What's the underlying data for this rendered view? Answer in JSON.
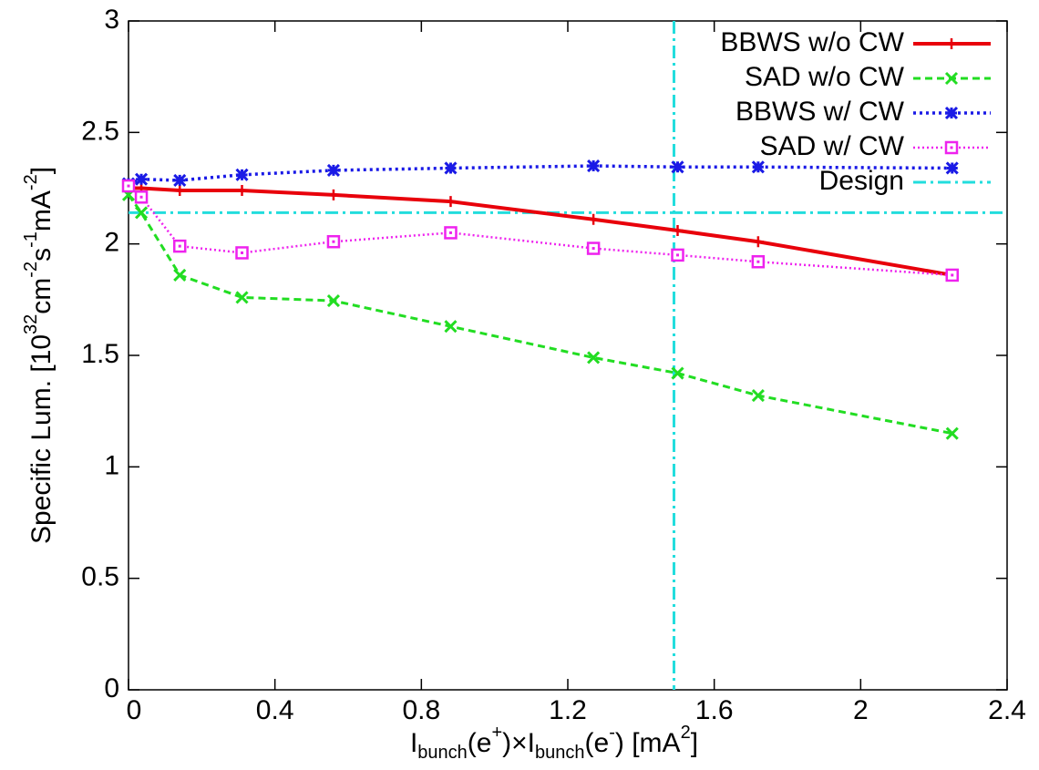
{
  "chart_data": {
    "type": "line",
    "x_label": [
      {
        "text": "I"
      },
      {
        "text": "bunch",
        "script": "sub"
      },
      {
        "text": "(e"
      },
      {
        "text": "+",
        "script": "super"
      },
      {
        "text": ")×I"
      },
      {
        "text": "bunch",
        "script": "sub"
      },
      {
        "text": "(e"
      },
      {
        "text": "-",
        "script": "super"
      },
      {
        "text": ") [mA"
      },
      {
        "text": "2",
        "script": "super"
      },
      {
        "text": "]"
      }
    ],
    "y_label": [
      {
        "text": "Specific Lum. [10"
      },
      {
        "text": "32",
        "script": "super"
      },
      {
        "text": "cm"
      },
      {
        "text": "-2",
        "script": "super"
      },
      {
        "text": "s"
      },
      {
        "text": "-1",
        "script": "super"
      },
      {
        "text": "mA"
      },
      {
        "text": "-2",
        "script": "super"
      },
      {
        "text": "]"
      }
    ],
    "xlim": [
      0,
      2.4
    ],
    "ylim": [
      0,
      3
    ],
    "xticks": [
      0,
      0.4,
      0.8,
      1.2,
      1.6,
      2,
      2.4
    ],
    "yticks": [
      0,
      0.5,
      1,
      1.5,
      2,
      2.5,
      3
    ],
    "legend": "upper right",
    "x": [
      0,
      0.035,
      0.14,
      0.31,
      0.56,
      0.88,
      1.27,
      1.5,
      1.72,
      2.25
    ],
    "series": [
      {
        "name": "BBWS w/o CW",
        "color": "#e8000b",
        "line": "solid",
        "marker": "plus",
        "values": [
          2.25,
          2.25,
          2.24,
          2.24,
          2.22,
          2.19,
          2.11,
          2.06,
          2.01,
          1.86
        ]
      },
      {
        "name": "SAD w/o CW",
        "color": "#22dd22",
        "line": "dashed",
        "marker": "cross",
        "values": [
          2.22,
          2.14,
          1.86,
          1.76,
          1.745,
          1.63,
          1.49,
          1.42,
          1.32,
          1.15
        ]
      },
      {
        "name": "BBWS w/ CW",
        "color": "#1a1ae6",
        "line": "dotted",
        "marker": "star",
        "values": [
          2.27,
          2.29,
          2.285,
          2.31,
          2.33,
          2.34,
          2.35,
          2.345,
          2.345,
          2.34
        ]
      },
      {
        "name": "SAD w/ CW",
        "color": "#ee22ee",
        "line": "finedotted",
        "marker": "square",
        "values": [
          2.26,
          2.21,
          1.99,
          1.96,
          2.01,
          2.05,
          1.98,
          1.95,
          1.92,
          1.86
        ]
      }
    ],
    "design": {
      "name": "Design",
      "color": "#22dddd",
      "x": 1.49,
      "y": 2.14
    }
  }
}
